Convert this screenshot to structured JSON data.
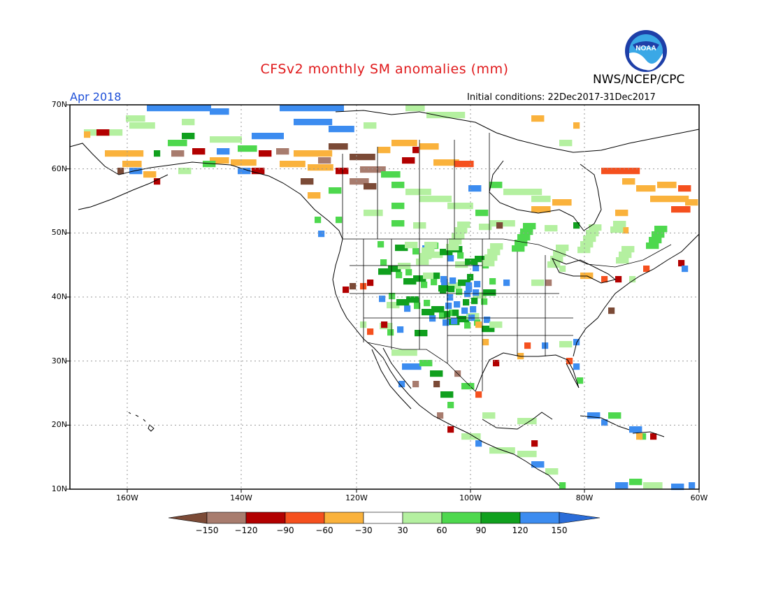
{
  "title": "CFSv2 monthly SM anomalies (mm)",
  "agency": "NWS/NCEP/CPC",
  "logo_text": "NOAA",
  "period": "Apr 2018",
  "initial_conditions": "Initial conditions: 22Dec2017-31Dec2017",
  "lat_labels": [
    "70N",
    "60N",
    "50N",
    "40N",
    "30N",
    "20N",
    "10N"
  ],
  "lon_labels": [
    "160W",
    "140W",
    "120W",
    "100W",
    "80W",
    "60W"
  ],
  "colorbar": {
    "labels": [
      "−150",
      "−120",
      "−90",
      "−60",
      "−30",
      "30",
      "60",
      "90",
      "120",
      "150"
    ],
    "colors": [
      "#7b4a36",
      "#a87c6e",
      "#b20000",
      "#f5501e",
      "#fab23c",
      "#ffffff",
      "#b4f0a0",
      "#4ed84e",
      "#10a01e",
      "#3c8cf0",
      "#2a6cd8"
    ]
  },
  "map_extent": {
    "lon_west": -170,
    "lon_east": -60,
    "lat_south": 10,
    "lat_north": 70
  }
}
